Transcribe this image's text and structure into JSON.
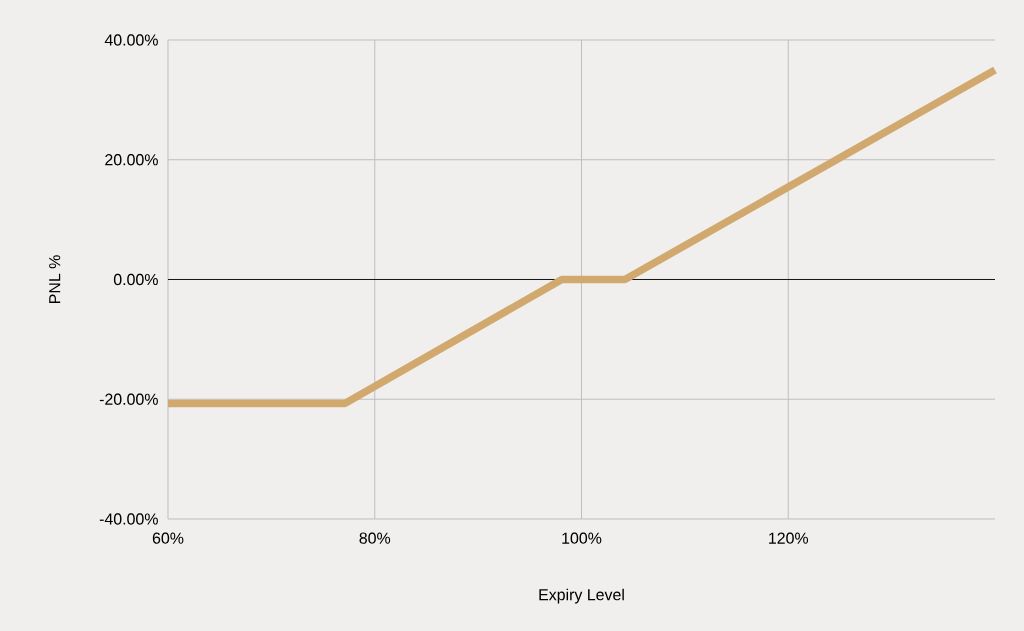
{
  "chart_data": {
    "type": "line",
    "xlabel": "Expiry Level",
    "ylabel": "PNL %",
    "x": [
      60,
      77.1,
      98.1,
      104.2,
      140
    ],
    "series": [
      {
        "color": "#d1a96f",
        "values": [
          -20.7,
          -20.7,
          0,
          0,
          35
        ]
      }
    ],
    "xlim": [
      60,
      140
    ],
    "ylim": [
      -40,
      40
    ],
    "xticks": [
      {
        "value": 60,
        "label": "60%"
      },
      {
        "value": 80,
        "label": "80%"
      },
      {
        "value": 100,
        "label": "100%"
      },
      {
        "value": 120,
        "label": "120%"
      }
    ],
    "yticks": [
      {
        "value": -40,
        "label": "-40.00%"
      },
      {
        "value": -20,
        "label": "-20.00%"
      },
      {
        "value": 0,
        "label": "0.00%"
      },
      {
        "value": 20,
        "label": "20.00%"
      },
      {
        "value": 40,
        "label": "40.00%"
      }
    ],
    "grid": true,
    "marker": "none",
    "line_style": "solid",
    "ref_lines": [
      {
        "axis": "y",
        "value": 0,
        "color": "#000000"
      }
    ]
  }
}
